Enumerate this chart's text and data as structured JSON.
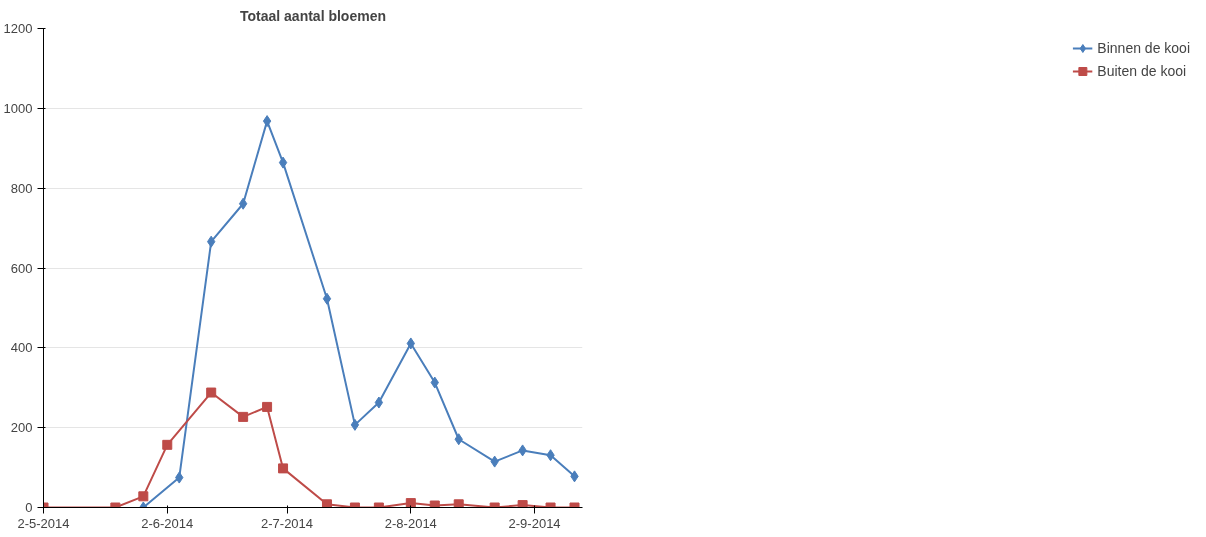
{
  "chart_data": {
    "type": "line",
    "title": "Totaal aantal bloemen",
    "legend": "right",
    "grid": "y",
    "line_style": "solid",
    "xlim": [
      "2014-05-02",
      "2014-09-14"
    ],
    "xticks": [
      {
        "value": "2014-05-02",
        "label": "2-5-2014"
      },
      {
        "value": "2014-06-02",
        "label": "2-6-2014"
      },
      {
        "value": "2014-07-02",
        "label": "2-7-2014"
      },
      {
        "value": "2014-08-02",
        "label": "2-8-2014"
      },
      {
        "value": "2014-09-02",
        "label": "2-9-2014"
      }
    ],
    "ylim": [
      0,
      1200
    ],
    "yticks": [
      0,
      200,
      400,
      600,
      800,
      1000,
      1200
    ],
    "series": [
      {
        "name": "Binnen de kooi",
        "color": "#4a7ebb",
        "marker": "diamond",
        "x": [
          "2014-05-27",
          "2014-06-05",
          "2014-06-13",
          "2014-06-21",
          "2014-06-27",
          "2014-07-01",
          "2014-07-12",
          "2014-07-19",
          "2014-07-25",
          "2014-08-02",
          "2014-08-08",
          "2014-08-14",
          "2014-08-23",
          "2014-08-30",
          "2014-09-06",
          "2014-09-12"
        ],
        "values": [
          0,
          75,
          666,
          761,
          968,
          864,
          523,
          207,
          263,
          411,
          313,
          171,
          115,
          143,
          131,
          78
        ]
      },
      {
        "name": "Buiten de kooi",
        "color": "#be4b48",
        "marker": "square",
        "x": [
          "2014-05-02",
          "2014-05-20",
          "2014-05-27",
          "2014-06-02",
          "2014-06-13",
          "2014-06-21",
          "2014-06-27",
          "2014-07-01",
          "2014-07-12",
          "2014-07-19",
          "2014-07-25",
          "2014-08-02",
          "2014-08-08",
          "2014-08-14",
          "2014-08-23",
          "2014-08-30",
          "2014-09-06",
          "2014-09-12"
        ],
        "values": [
          0,
          0,
          28,
          157,
          288,
          227,
          252,
          98,
          8,
          0,
          0,
          11,
          5,
          8,
          0,
          6,
          0,
          0
        ]
      }
    ]
  }
}
